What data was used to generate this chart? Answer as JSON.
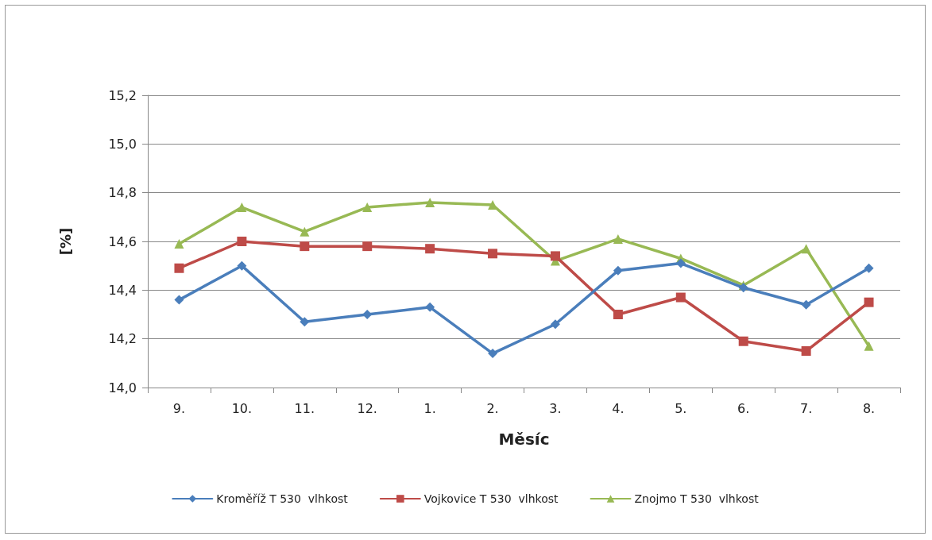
{
  "chart_data": {
    "type": "line",
    "xlabel": "Měsíc",
    "ylabel": "[%]",
    "categories": [
      "9.",
      "10.",
      "11.",
      "12.",
      "1.",
      "2.",
      "3.",
      "4.",
      "5.",
      "6.",
      "7.",
      "8."
    ],
    "series": [
      {
        "name": "Kroměříž T 530  vlhkost",
        "color": "#4a7ebb",
        "marker": "diamond",
        "values": [
          14.36,
          14.5,
          14.27,
          14.3,
          14.33,
          14.14,
          14.26,
          14.48,
          14.51,
          14.41,
          14.34,
          14.49
        ]
      },
      {
        "name": "Vojkovice T 530  vlhkost",
        "color": "#be4b48",
        "marker": "square",
        "values": [
          14.49,
          14.6,
          14.58,
          14.58,
          14.57,
          14.55,
          14.54,
          14.3,
          14.37,
          14.19,
          14.15,
          14.35
        ]
      },
      {
        "name": "Znojmo T 530  vlhkost",
        "color": "#98b954",
        "marker": "triangle",
        "values": [
          14.59,
          14.74,
          14.64,
          14.74,
          14.76,
          14.75,
          14.52,
          14.61,
          14.53,
          14.42,
          14.57,
          14.17
        ]
      }
    ],
    "ylim": [
      14.0,
      15.2
    ],
    "yticks": [
      {
        "value": 14.0,
        "label": "14,0"
      },
      {
        "value": 14.2,
        "label": "14,2"
      },
      {
        "value": 14.4,
        "label": "14,4"
      },
      {
        "value": 14.6,
        "label": "14,6"
      },
      {
        "value": 14.8,
        "label": "14,8"
      },
      {
        "value": 15.0,
        "label": "15,0"
      },
      {
        "value": 15.2,
        "label": "15,2"
      }
    ],
    "grid": "y",
    "legend": "bottom",
    "line_style": "solid"
  }
}
